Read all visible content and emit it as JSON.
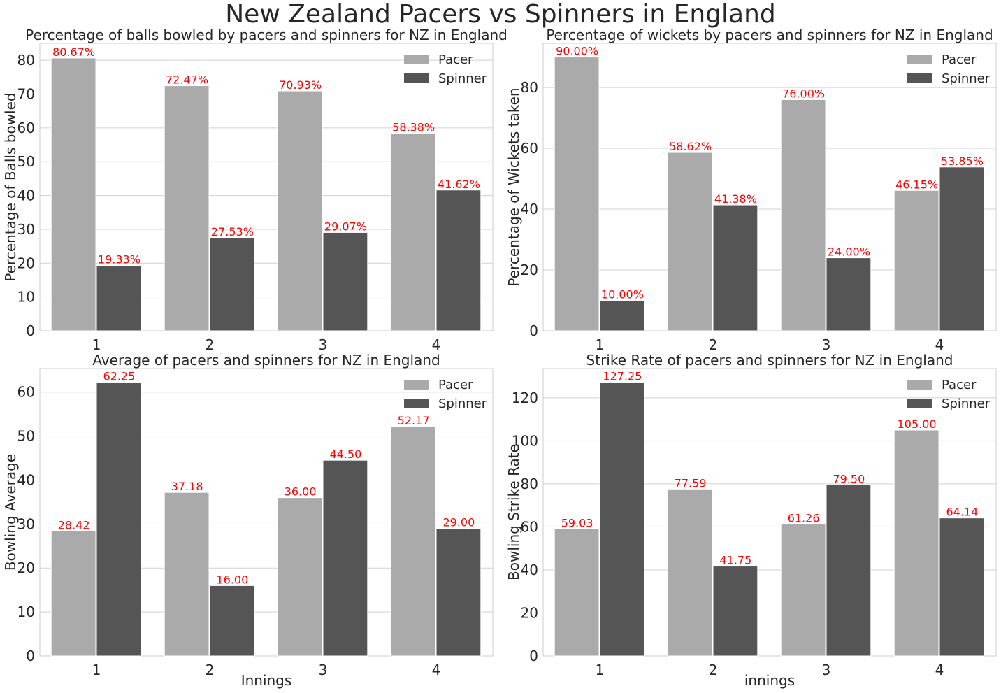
{
  "figure": {
    "title": "New Zealand Pacers vs Spinners in England"
  },
  "colors": {
    "pacer": "#aaaaaa",
    "spinner": "#555555",
    "label": "#ff0000",
    "grid": "#d0d0d0",
    "text": "#262626"
  },
  "chart_data": [
    {
      "type": "bar",
      "title": "Percentage of balls bowled by pacers and spinners for NZ in England",
      "xlabel": "",
      "ylabel": "Percentage of Balls bowled",
      "categories": [
        "1",
        "2",
        "3",
        "4"
      ],
      "ylim": [
        0,
        85
      ],
      "yticks": [
        0,
        10,
        20,
        30,
        40,
        50,
        60,
        70,
        80
      ],
      "grid": true,
      "legend_placement": "top-right",
      "series": [
        {
          "name": "Pacer",
          "values": [
            80.67,
            72.47,
            70.93,
            58.38
          ],
          "labels": [
            "80.67%",
            "72.47%",
            "70.93%",
            "58.38%"
          ]
        },
        {
          "name": "Spinner",
          "values": [
            19.33,
            27.53,
            29.07,
            41.62
          ],
          "labels": [
            "19.33%",
            "27.53%",
            "29.07%",
            "41.62%"
          ]
        }
      ]
    },
    {
      "type": "bar",
      "title": "Percentage of wickets by pacers and spinners for NZ in England",
      "xlabel": "",
      "ylabel": "Percentage of Wickets taken",
      "categories": [
        "1",
        "2",
        "3",
        "4"
      ],
      "ylim": [
        0,
        94.5
      ],
      "yticks": [
        0,
        20,
        40,
        60,
        80
      ],
      "grid": true,
      "legend_placement": "top-right",
      "series": [
        {
          "name": "Pacer",
          "values": [
            90.0,
            58.62,
            76.0,
            46.15
          ],
          "labels": [
            "90.00%",
            "58.62%",
            "76.00%",
            "46.15%"
          ]
        },
        {
          "name": "Spinner",
          "values": [
            10.0,
            41.38,
            24.0,
            53.85
          ],
          "labels": [
            "10.00%",
            "41.38%",
            "24.00%",
            "53.85%"
          ]
        }
      ]
    },
    {
      "type": "bar",
      "title": "Average of pacers and spinners for NZ in England",
      "xlabel": "Innings",
      "ylabel": "Bowling Average",
      "categories": [
        "1",
        "2",
        "3",
        "4"
      ],
      "ylim": [
        0,
        65.36
      ],
      "yticks": [
        0,
        10,
        20,
        30,
        40,
        50,
        60
      ],
      "grid": true,
      "legend_placement": "top-right",
      "series": [
        {
          "name": "Pacer",
          "values": [
            28.42,
            37.18,
            36.0,
            52.17
          ],
          "labels": [
            "28.42",
            "37.18",
            "36.00",
            "52.17"
          ]
        },
        {
          "name": "Spinner",
          "values": [
            62.25,
            16.0,
            44.5,
            29.0
          ],
          "labels": [
            "62.25",
            "16.00",
            "44.50",
            "29.00"
          ]
        }
      ]
    },
    {
      "type": "bar",
      "title": "Strike Rate of pacers and spinners for NZ in England",
      "xlabel": "innings",
      "ylabel": "Bowling Strike Rate",
      "categories": [
        "1",
        "2",
        "3",
        "4"
      ],
      "ylim": [
        0,
        133.6
      ],
      "yticks": [
        0,
        20,
        40,
        60,
        80,
        100,
        120
      ],
      "grid": true,
      "legend_placement": "top-right",
      "series": [
        {
          "name": "Pacer",
          "values": [
            59.03,
            77.59,
            61.26,
            105.0
          ],
          "labels": [
            "59.03",
            "77.59",
            "61.26",
            "105.00"
          ]
        },
        {
          "name": "Spinner",
          "values": [
            127.25,
            41.75,
            79.5,
            64.14
          ],
          "labels": [
            "127.25",
            "41.75",
            "79.50",
            "64.14"
          ]
        }
      ]
    }
  ]
}
